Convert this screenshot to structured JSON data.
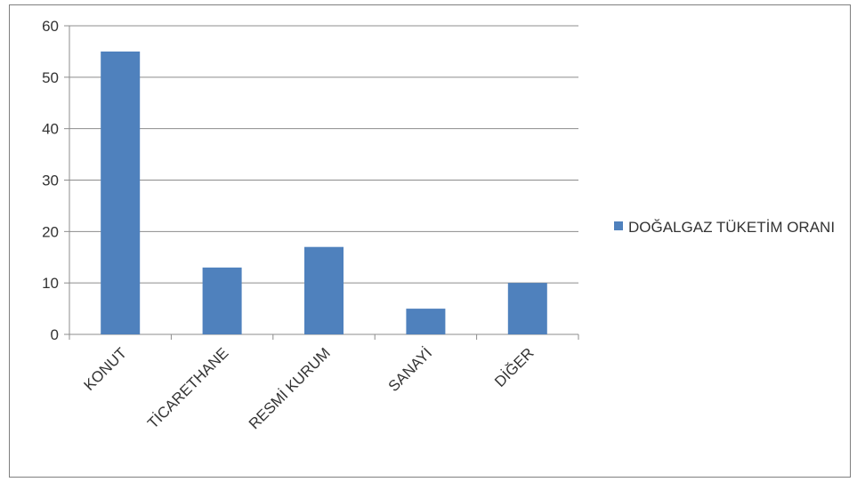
{
  "chart_data": {
    "type": "bar",
    "categories": [
      "KONUT",
      "TİCARETHANE",
      "RESMİ KURUM",
      "SANAYİ",
      "DİĞER"
    ],
    "series": [
      {
        "name": "DOĞALGAZ TÜKETİM ORANI",
        "values": [
          55,
          13,
          17,
          5,
          10
        ],
        "color": "#4f81bd"
      }
    ],
    "y_ticks": [
      0,
      10,
      20,
      30,
      40,
      50,
      60
    ],
    "ylim": [
      0,
      60
    ],
    "grid": true,
    "legend_position": "right",
    "title": "",
    "xlabel": "",
    "ylabel": ""
  },
  "colors": {
    "bar": "#4f81bd",
    "grid": "#8c8c8c",
    "axis": "#8c8c8c",
    "text": "#333333"
  }
}
